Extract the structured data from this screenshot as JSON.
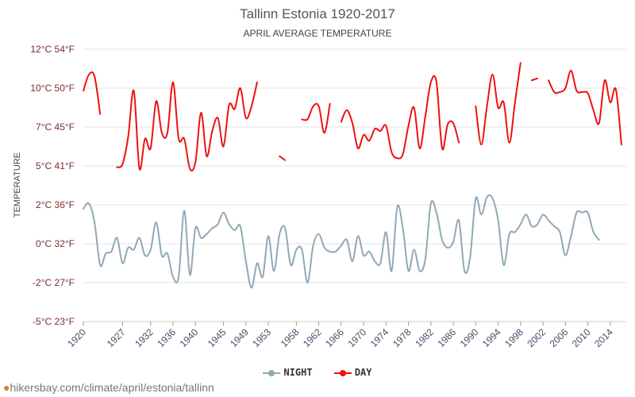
{
  "chart_data": {
    "type": "line",
    "title": "Tallinn Estonia 1920-2017",
    "subtitle": "APRIL AVERAGE TEMPERATURE",
    "ylabel": "TEMPERATURE",
    "xlabel": "",
    "ylim": [
      -5,
      12
    ],
    "xlim": [
      1920,
      2017
    ],
    "grid": true,
    "legend_position": "bottom",
    "y_tick_labels": [
      {
        "value": 12,
        "label": "12°C 54°F"
      },
      {
        "value": 10,
        "label": "10°C 50°F"
      },
      {
        "value": 7,
        "label": "7°C 45°F"
      },
      {
        "value": 5,
        "label": "5°C 41°F"
      },
      {
        "value": 2,
        "label": "2°C 36°F"
      },
      {
        "value": 0,
        "label": "0°C 32°F"
      },
      {
        "value": -2,
        "label": "-2°C 27°F"
      },
      {
        "value": -5,
        "label": "-5°C 23°F"
      }
    ],
    "x_tick_labels": [
      "1920",
      "1927",
      "1932",
      "1936",
      "1940",
      "1945",
      "1949",
      "1953",
      "1958",
      "1962",
      "1966",
      "1970",
      "1974",
      "1978",
      "1982",
      "1986",
      "1990",
      "1994",
      "1998",
      "2002",
      "2006",
      "2010",
      "2014"
    ],
    "series": [
      {
        "name": "DAY",
        "color": "#ee1111",
        "values": [
          [
            1920,
            9.8
          ],
          [
            1921,
            10.7
          ],
          [
            1922,
            10.6
          ],
          [
            1923,
            8.0
          ],
          [
            1925,
            null
          ],
          [
            1926,
            4.9
          ],
          [
            1927,
            5.1
          ],
          [
            1928,
            6.5
          ],
          [
            1929,
            9.8
          ],
          [
            1930,
            4.8
          ],
          [
            1931,
            6.4
          ],
          [
            1932,
            5.9
          ],
          [
            1933,
            9.0
          ],
          [
            1934,
            6.7
          ],
          [
            1935,
            6.7
          ],
          [
            1936,
            10.3
          ],
          [
            1937,
            6.4
          ],
          [
            1938,
            6.4
          ],
          [
            1939,
            4.8
          ],
          [
            1940,
            5.2
          ],
          [
            1941,
            8.1
          ],
          [
            1942,
            5.5
          ],
          [
            1943,
            6.8
          ],
          [
            1944,
            7.7
          ],
          [
            1945,
            6.0
          ],
          [
            1946,
            8.7
          ],
          [
            1947,
            8.4
          ],
          [
            1948,
            10.0
          ],
          [
            1949,
            7.7
          ],
          [
            1950,
            8.6
          ],
          [
            1951,
            10.3
          ],
          [
            1952,
            null
          ],
          [
            1955,
            5.5
          ],
          [
            1956,
            5.3
          ],
          [
            1957,
            null
          ],
          [
            1959,
            7.6
          ],
          [
            1960,
            7.6
          ],
          [
            1961,
            8.6
          ],
          [
            1962,
            8.6
          ],
          [
            1963,
            6.7
          ],
          [
            1964,
            8.8
          ],
          [
            1965,
            null
          ],
          [
            1966,
            7.4
          ],
          [
            1967,
            8.3
          ],
          [
            1968,
            7.3
          ],
          [
            1969,
            5.9
          ],
          [
            1970,
            6.6
          ],
          [
            1971,
            6.3
          ],
          [
            1972,
            6.9
          ],
          [
            1973,
            6.8
          ],
          [
            1974,
            7.1
          ],
          [
            1975,
            5.7
          ],
          [
            1976,
            5.4
          ],
          [
            1977,
            5.6
          ],
          [
            1978,
            7.1
          ],
          [
            1979,
            8.5
          ],
          [
            1980,
            5.9
          ],
          [
            1981,
            7.8
          ],
          [
            1982,
            10.3
          ],
          [
            1983,
            10.3
          ],
          [
            1984,
            5.9
          ],
          [
            1985,
            7.2
          ],
          [
            1986,
            7.3
          ],
          [
            1987,
            6.2
          ],
          [
            1988,
            null
          ],
          [
            1990,
            8.6
          ],
          [
            1991,
            6.1
          ],
          [
            1992,
            8.6
          ],
          [
            1993,
            10.7
          ],
          [
            1994,
            8.5
          ],
          [
            1995,
            8.9
          ],
          [
            1996,
            6.2
          ],
          [
            1997,
            8.9
          ],
          [
            1998,
            11.3
          ],
          [
            1999,
            null
          ],
          [
            2000,
            10.4
          ],
          [
            2001,
            10.5
          ],
          [
            2002,
            null
          ],
          [
            2003,
            10.4
          ],
          [
            2004,
            9.7
          ],
          [
            2005,
            9.7
          ],
          [
            2006,
            10.0
          ],
          [
            2007,
            10.9
          ],
          [
            2008,
            9.8
          ],
          [
            2009,
            9.7
          ],
          [
            2010,
            9.6
          ],
          [
            2011,
            8.3
          ],
          [
            2012,
            7.3
          ],
          [
            2013,
            10.4
          ],
          [
            2014,
            8.9
          ],
          [
            2015,
            9.9
          ],
          [
            2016,
            6.1
          ]
        ]
      },
      {
        "name": "NIGHT",
        "color": "#8fa9b5",
        "values": [
          [
            1920,
            1.8
          ],
          [
            1921,
            2.1
          ],
          [
            1922,
            1.1
          ],
          [
            1923,
            -1.1
          ],
          [
            1924,
            -0.5
          ],
          [
            1925,
            -0.4
          ],
          [
            1926,
            0.3
          ],
          [
            1927,
            -1.0
          ],
          [
            1928,
            -0.2
          ],
          [
            1929,
            -0.3
          ],
          [
            1930,
            0.3
          ],
          [
            1931,
            -0.6
          ],
          [
            1932,
            -0.3
          ],
          [
            1933,
            1.1
          ],
          [
            1934,
            -0.6
          ],
          [
            1935,
            -0.5
          ],
          [
            1936,
            -1.7
          ],
          [
            1937,
            -1.7
          ],
          [
            1938,
            1.7
          ],
          [
            1939,
            -1.6
          ],
          [
            1940,
            0.8
          ],
          [
            1941,
            0.3
          ],
          [
            1942,
            0.5
          ],
          [
            1943,
            0.8
          ],
          [
            1944,
            1.0
          ],
          [
            1945,
            1.6
          ],
          [
            1946,
            1.0
          ],
          [
            1947,
            0.7
          ],
          [
            1948,
            0.9
          ],
          [
            1949,
            -0.9
          ],
          [
            1950,
            -2.4
          ],
          [
            1951,
            -1.0
          ],
          [
            1952,
            -1.7
          ],
          [
            1953,
            0.4
          ],
          [
            1954,
            -1.4
          ],
          [
            1955,
            0.5
          ],
          [
            1956,
            0.8
          ],
          [
            1957,
            -1.1
          ],
          [
            1958,
            -0.3
          ],
          [
            1959,
            -0.3
          ],
          [
            1960,
            -2.0
          ],
          [
            1961,
            -0.1
          ],
          [
            1962,
            0.5
          ],
          [
            1963,
            -0.2
          ],
          [
            1964,
            -0.4
          ],
          [
            1965,
            -0.4
          ],
          [
            1966,
            -0.1
          ],
          [
            1967,
            0.2
          ],
          [
            1968,
            -0.9
          ],
          [
            1969,
            0.4
          ],
          [
            1970,
            -0.6
          ],
          [
            1971,
            -0.4
          ],
          [
            1972,
            -0.9
          ],
          [
            1973,
            -1.0
          ],
          [
            1974,
            0.6
          ],
          [
            1975,
            -1.4
          ],
          [
            1976,
            1.9
          ],
          [
            1977,
            0.8
          ],
          [
            1978,
            -1.4
          ],
          [
            1979,
            -0.3
          ],
          [
            1980,
            -1.4
          ],
          [
            1981,
            -0.8
          ],
          [
            1982,
            2.1
          ],
          [
            1983,
            1.6
          ],
          [
            1984,
            0.2
          ],
          [
            1985,
            -0.2
          ],
          [
            1986,
            0.1
          ],
          [
            1987,
            1.2
          ],
          [
            1988,
            -1.4
          ],
          [
            1989,
            -0.7
          ],
          [
            1990,
            2.5
          ],
          [
            1991,
            1.5
          ],
          [
            1992,
            2.6
          ],
          [
            1993,
            2.5
          ],
          [
            1994,
            1.2
          ],
          [
            1995,
            -1.1
          ],
          [
            1996,
            0.5
          ],
          [
            1997,
            0.6
          ],
          [
            1998,
            1.0
          ],
          [
            1999,
            1.5
          ],
          [
            2000,
            0.9
          ],
          [
            2001,
            1.0
          ],
          [
            2002,
            1.5
          ],
          [
            2003,
            1.2
          ],
          [
            2004,
            0.9
          ],
          [
            2005,
            0.6
          ],
          [
            2006,
            -0.6
          ],
          [
            2007,
            0.4
          ],
          [
            2008,
            1.6
          ],
          [
            2009,
            1.6
          ],
          [
            2010,
            1.6
          ],
          [
            2011,
            0.6
          ],
          [
            2012,
            0.2
          ]
        ]
      }
    ]
  },
  "legend": {
    "night_label": "NIGHT",
    "day_label": "DAY"
  },
  "footer": {
    "link_text": "hikersbay.com/climate/april/estonia/tallinn"
  }
}
